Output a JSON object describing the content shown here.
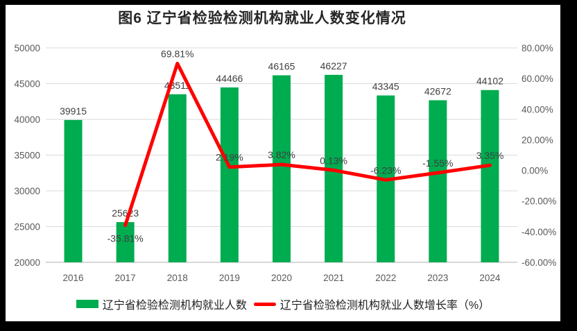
{
  "title": "图6 辽宁省检验检测机构就业人数变化情况",
  "colors": {
    "bar": "#00AC50",
    "line": "#FF0000",
    "grid": "#D9D9D9",
    "axis_line": "#BFBFBF",
    "tick_text": "#595959",
    "label_text": "#3F3F3F",
    "title_text": "#262626",
    "legend_text": "#1F1F1F",
    "frame": "#000000",
    "background": "#FFFFFF"
  },
  "chart_data": {
    "type": "bar+line",
    "title": "图6 辽宁省检验检测机构就业人数变化情况",
    "categories": [
      "2016",
      "2017",
      "2018",
      "2019",
      "2020",
      "2021",
      "2022",
      "2023",
      "2024"
    ],
    "series": [
      {
        "name": "辽宁省检验检测机构就业人数",
        "type": "bar",
        "axis": "left",
        "values": [
          39915,
          25623,
          43511,
          44466,
          46165,
          46227,
          43345,
          42672,
          44102
        ],
        "labels": [
          "39915",
          "25623",
          "43511",
          "44466",
          "46165",
          "46227",
          "43345",
          "42672",
          "44102"
        ]
      },
      {
        "name": "辽宁省检验检测机构就业人数增长率（%）",
        "type": "line",
        "axis": "right",
        "values": [
          null,
          -35.81,
          69.81,
          2.19,
          3.82,
          0.13,
          -6.23,
          -1.55,
          3.35
        ],
        "labels": [
          null,
          "-35.81%",
          "69.81%",
          "2.19%",
          "3.82%",
          "0.13%",
          "-6.23%",
          "-1.55%",
          "3.35%"
        ],
        "label_below": [
          false,
          true,
          false,
          false,
          false,
          false,
          false,
          false,
          false
        ]
      }
    ],
    "left_axis": {
      "min": 20000,
      "max": 50000,
      "ticks": [
        "50000",
        "45000",
        "40000",
        "35000",
        "30000",
        "25000",
        "20000"
      ],
      "tick_values": [
        50000,
        45000,
        40000,
        35000,
        30000,
        25000,
        20000
      ]
    },
    "right_axis": {
      "min": -60,
      "max": 80,
      "ticks": [
        "80.00%",
        "60.00%",
        "40.00%",
        "20.00%",
        "0.00%",
        "-20.00%",
        "-40.00%",
        "-60.00%"
      ],
      "tick_values": [
        80,
        60,
        40,
        20,
        0,
        -20,
        -40,
        -60
      ]
    },
    "grid": true,
    "legend_position": "bottom"
  }
}
